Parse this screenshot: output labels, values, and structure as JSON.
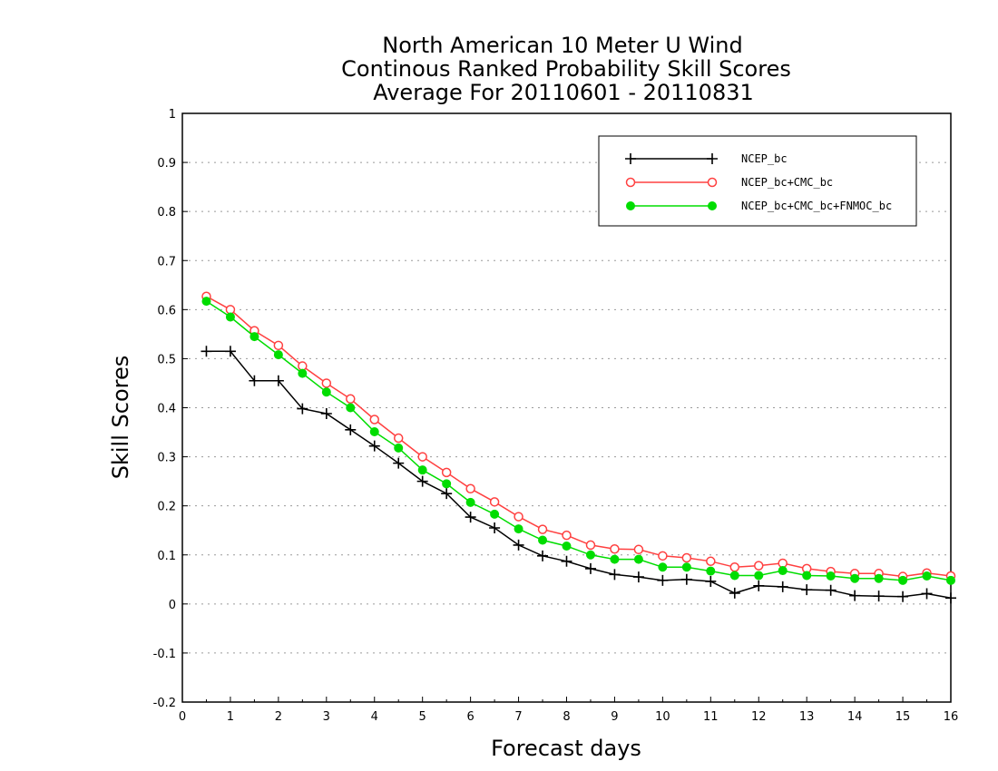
{
  "chart_data": {
    "type": "line",
    "title": [
      "North American 10 Meter U Wind",
      "Continous Ranked Probability Skill Scores",
      "Average For 20110601 - 20110831"
    ],
    "xlabel": "Forecast days",
    "ylabel": "Skill Scores",
    "xlim": [
      0,
      16
    ],
    "ylim": [
      -0.2,
      1
    ],
    "xticks": [
      0,
      1,
      2,
      3,
      4,
      5,
      6,
      7,
      8,
      9,
      10,
      11,
      12,
      13,
      14,
      15,
      16
    ],
    "yticks": [
      -0.2,
      -0.1,
      0,
      0.1,
      0.2,
      0.3,
      0.4,
      0.5,
      0.6,
      0.7,
      0.8,
      0.9,
      1
    ],
    "ytick_labels": [
      "-0.2",
      "-0.1",
      "0",
      "0.1",
      "0.2",
      "0.3",
      "0.4",
      "0.5",
      "0.6",
      "0.7",
      "0.8",
      "0.9",
      "1"
    ],
    "grid": true,
    "legend_position": "top-right",
    "x": [
      0.5,
      1,
      1.5,
      2,
      2.5,
      3,
      3.5,
      4,
      4.5,
      5,
      5.5,
      6,
      6.5,
      7,
      7.5,
      8,
      8.5,
      9,
      9.5,
      10,
      10.5,
      11,
      11.5,
      12,
      12.5,
      13,
      13.5,
      14,
      14.5,
      15,
      15.5,
      16
    ],
    "series": [
      {
        "name": "NCEP_bc",
        "color": "#000000",
        "marker": "plus",
        "values": [
          0.515,
          0.515,
          0.455,
          0.455,
          0.398,
          0.388,
          0.355,
          0.322,
          0.287,
          0.25,
          0.225,
          0.177,
          0.155,
          0.12,
          0.098,
          0.087,
          0.072,
          0.06,
          0.055,
          0.048,
          0.05,
          0.046,
          0.022,
          0.037,
          0.035,
          0.029,
          0.028,
          0.017,
          0.016,
          0.015,
          0.021,
          0.012
        ]
      },
      {
        "name": "NCEP_bc+CMC_bc",
        "color": "#ff4040",
        "marker": "open-circle",
        "values": [
          0.627,
          0.6,
          0.557,
          0.527,
          0.485,
          0.45,
          0.418,
          0.376,
          0.338,
          0.3,
          0.268,
          0.235,
          0.208,
          0.178,
          0.152,
          0.14,
          0.12,
          0.112,
          0.111,
          0.098,
          0.094,
          0.087,
          0.075,
          0.078,
          0.083,
          0.072,
          0.066,
          0.062,
          0.062,
          0.056,
          0.063,
          0.057
        ]
      },
      {
        "name": "NCEP_bc+CMC_bc+FNMOC_bc",
        "color": "#00dd00",
        "marker": "filled-circle",
        "values": [
          0.617,
          0.585,
          0.545,
          0.508,
          0.47,
          0.432,
          0.4,
          0.351,
          0.318,
          0.273,
          0.245,
          0.207,
          0.183,
          0.153,
          0.13,
          0.118,
          0.1,
          0.091,
          0.091,
          0.075,
          0.075,
          0.067,
          0.058,
          0.058,
          0.068,
          0.058,
          0.057,
          0.052,
          0.052,
          0.048,
          0.057,
          0.048
        ]
      }
    ]
  }
}
